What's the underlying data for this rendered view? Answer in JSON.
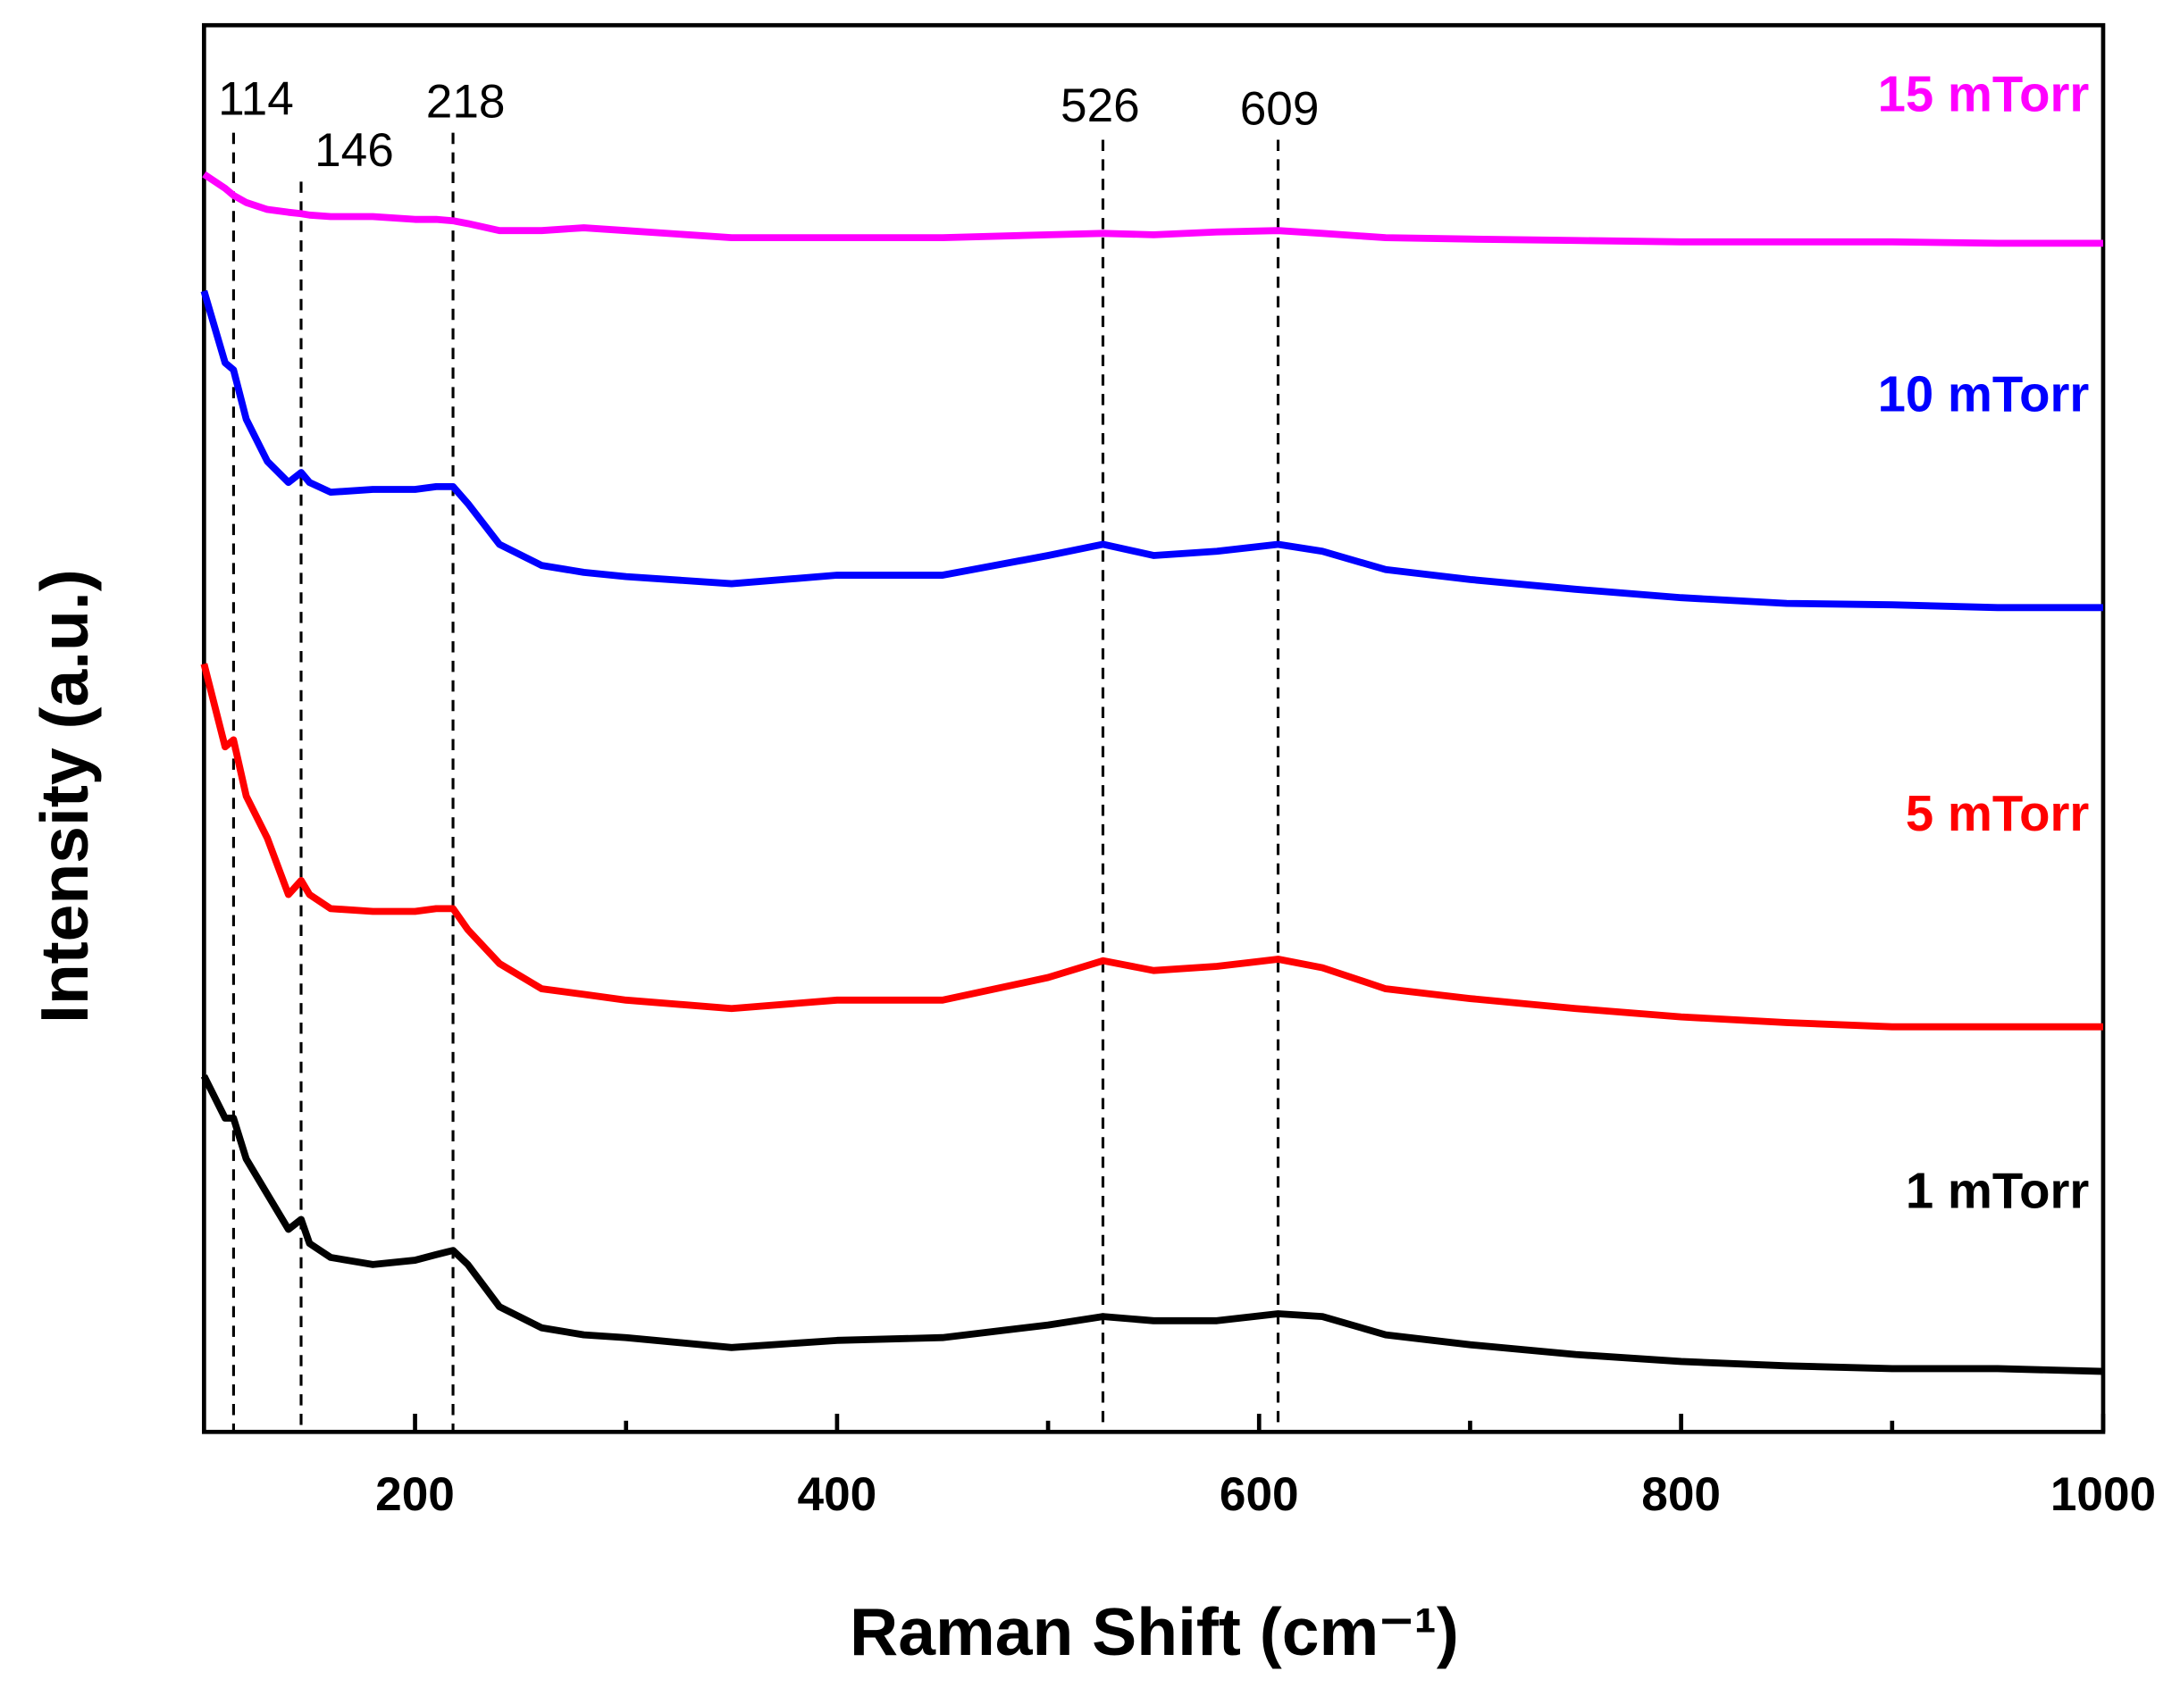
{
  "chart_data": {
    "type": "line",
    "xlabel": "Raman Shift (cm⁻¹)",
    "ylabel": "Intensity (a.u.)",
    "x": [
      100,
      110,
      114,
      120,
      130,
      140,
      146,
      150,
      160,
      180,
      200,
      210,
      218,
      225,
      240,
      260,
      280,
      300,
      350,
      400,
      450,
      500,
      526,
      550,
      580,
      609,
      630,
      660,
      700,
      750,
      800,
      850,
      900,
      950,
      1000
    ],
    "series": [
      {
        "name": "15 mTorr",
        "color": "#ff00ff",
        "values": [
          89.4,
          88.4,
          87.9,
          87.4,
          86.9,
          86.7,
          86.6,
          86.5,
          86.4,
          86.4,
          86.2,
          86.2,
          86.1,
          85.9,
          85.4,
          85.4,
          85.6,
          85.4,
          84.9,
          84.9,
          84.9,
          85.1,
          85.2,
          85.1,
          85.3,
          85.4,
          85.2,
          84.9,
          84.8,
          84.7,
          84.6,
          84.6,
          84.6,
          84.5,
          84.5
        ]
      },
      {
        "name": "10 mTorr",
        "color": "#0000ff",
        "values": [
          81.1,
          76.0,
          75.5,
          72.0,
          69.0,
          67.5,
          68.2,
          67.5,
          66.8,
          67.0,
          67.0,
          67.2,
          67.2,
          66.0,
          63.1,
          61.6,
          61.1,
          60.8,
          60.3,
          60.9,
          60.9,
          62.3,
          63.1,
          62.3,
          62.6,
          63.1,
          62.6,
          61.3,
          60.6,
          59.9,
          59.3,
          58.9,
          58.8,
          58.6,
          58.6
        ]
      },
      {
        "name": "5 mTorr",
        "color": "#ff0000",
        "values": [
          54.6,
          48.7,
          49.2,
          45.2,
          42.2,
          38.2,
          39.2,
          38.2,
          37.2,
          37.0,
          37.0,
          37.2,
          37.2,
          35.7,
          33.3,
          31.5,
          31.1,
          30.7,
          30.1,
          30.7,
          30.7,
          32.3,
          33.5,
          32.8,
          33.1,
          33.6,
          33.0,
          31.5,
          30.8,
          30.1,
          29.5,
          29.1,
          28.8,
          28.8,
          28.8
        ]
      },
      {
        "name": "1 mTorr",
        "color": "#000000",
        "values": [
          25.3,
          22.3,
          22.3,
          19.4,
          16.9,
          14.4,
          15.1,
          13.4,
          12.4,
          11.9,
          12.2,
          12.6,
          12.9,
          11.9,
          8.9,
          7.4,
          6.9,
          6.7,
          6.0,
          6.5,
          6.7,
          7.6,
          8.2,
          7.9,
          7.9,
          8.4,
          8.2,
          6.9,
          6.2,
          5.5,
          5.0,
          4.7,
          4.5,
          4.5,
          4.3
        ]
      }
    ],
    "peaks": [
      114,
      146,
      218,
      526,
      609
    ],
    "xlim": [
      100,
      1000
    ],
    "xticks": [
      200,
      400,
      600,
      800,
      1000
    ],
    "xminor_ticks": [
      300,
      500,
      700,
      900
    ],
    "ylim": [
      0,
      100
    ]
  }
}
